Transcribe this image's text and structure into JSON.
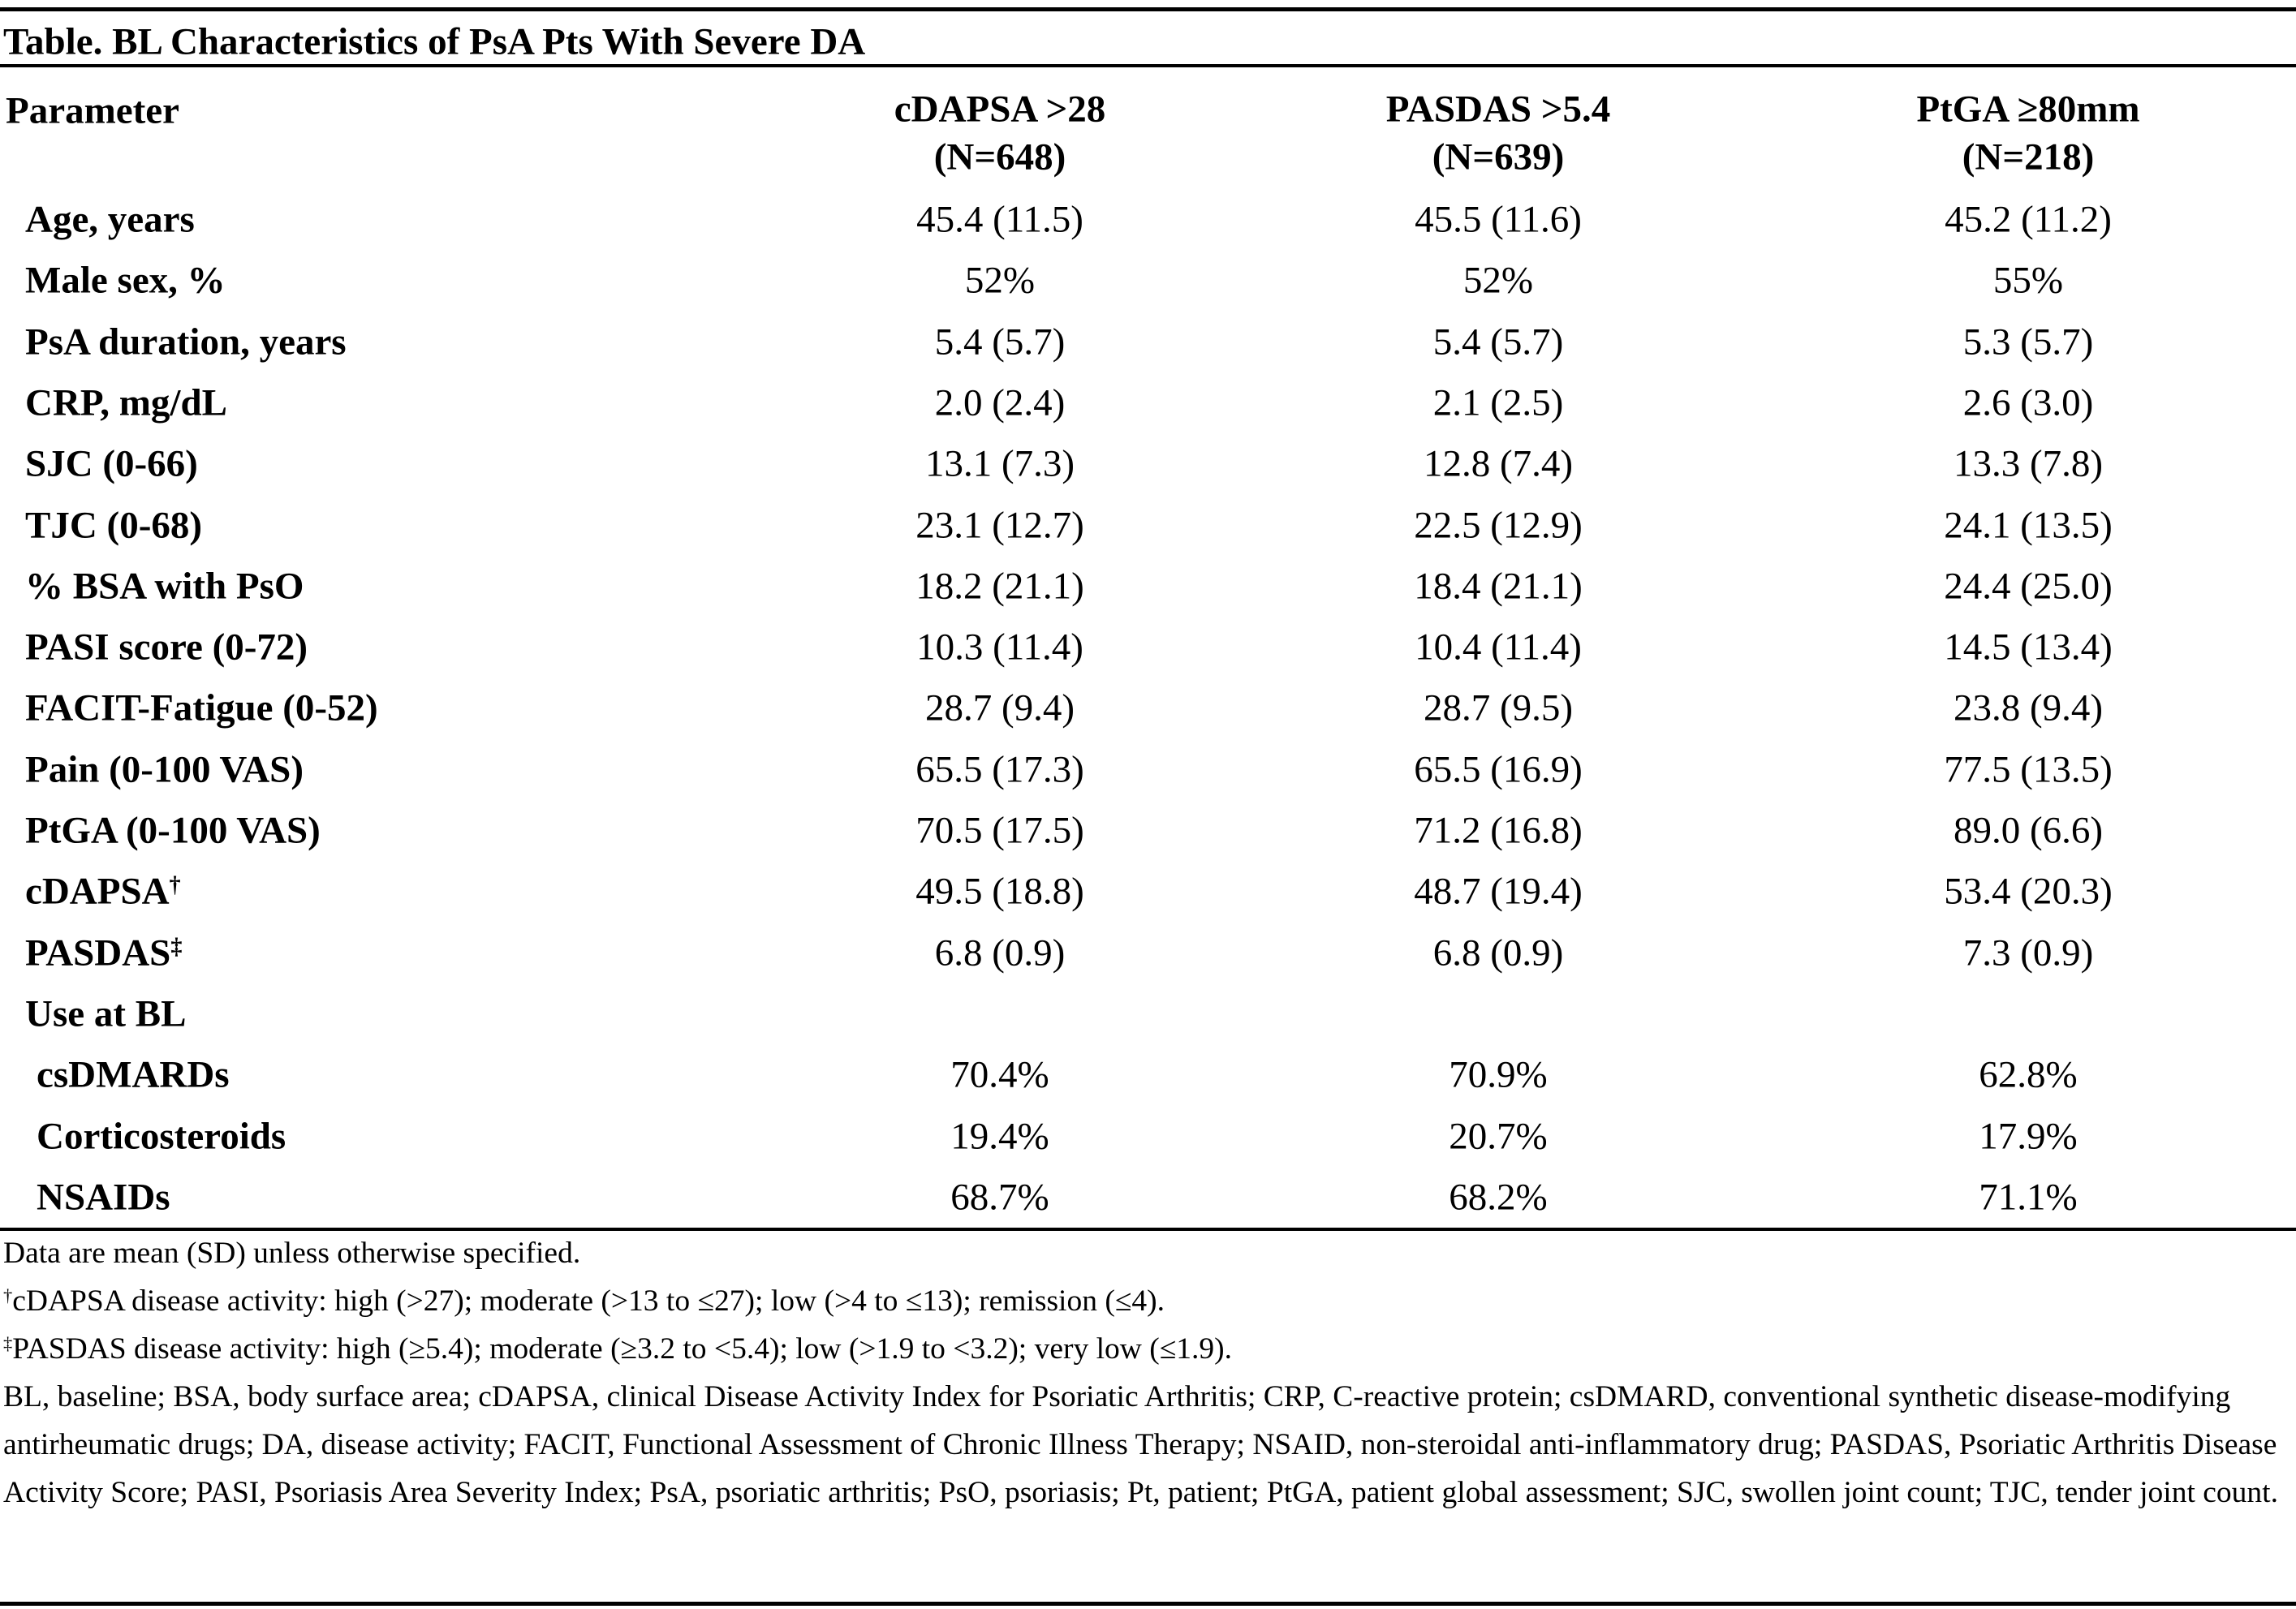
{
  "table": {
    "title": "Table. BL Characteristics of PsA Pts With Severe DA",
    "header": {
      "parameter": "Parameter",
      "columns": [
        {
          "name": "cDAPSA >28",
          "n": "(N=648)"
        },
        {
          "name": "PASDAS >5.4",
          "n": "(N=639)"
        },
        {
          "name": "PtGA ≥80mm",
          "n": "(N=218)"
        }
      ]
    },
    "rows": [
      {
        "parameter": "Age, years",
        "values": [
          "45.4 (11.5)",
          "45.5 (11.6)",
          "45.2 (11.2)"
        ]
      },
      {
        "parameter": "Male sex, %",
        "values": [
          "52%",
          "52%",
          "55%"
        ]
      },
      {
        "parameter": "PsA duration, years",
        "values": [
          "5.4 (5.7)",
          "5.4 (5.7)",
          "5.3 (5.7)"
        ]
      },
      {
        "parameter": "CRP, mg/dL",
        "values": [
          "2.0 (2.4)",
          "2.1 (2.5)",
          "2.6 (3.0)"
        ]
      },
      {
        "parameter": "SJC (0-66)",
        "values": [
          "13.1 (7.3)",
          "12.8 (7.4)",
          "13.3 (7.8)"
        ]
      },
      {
        "parameter": "TJC (0-68)",
        "values": [
          "23.1 (12.7)",
          "22.5 (12.9)",
          "24.1 (13.5)"
        ]
      },
      {
        "parameter": "% BSA with PsO",
        "values": [
          "18.2 (21.1)",
          "18.4 (21.1)",
          "24.4 (25.0)"
        ]
      },
      {
        "parameter": "PASI score (0-72)",
        "values": [
          "10.3 (11.4)",
          "10.4 (11.4)",
          "14.5 (13.4)"
        ]
      },
      {
        "parameter": "FACIT-Fatigue (0-52)",
        "values": [
          "28.7 (9.4)",
          "28.7 (9.5)",
          "23.8 (9.4)"
        ]
      },
      {
        "parameter": "Pain (0-100 VAS)",
        "values": [
          "65.5 (17.3)",
          "65.5 (16.9)",
          "77.5 (13.5)"
        ]
      },
      {
        "parameter": "PtGA (0-100 VAS)",
        "values": [
          "70.5 (17.5)",
          "71.2 (16.8)",
          "89.0 (6.6)"
        ]
      },
      {
        "parameter": "cDAPSA",
        "mark": "†",
        "values": [
          "49.5 (18.8)",
          "48.7 (19.4)",
          "53.4 (20.3)"
        ]
      },
      {
        "parameter": "PASDAS",
        "mark": "‡",
        "values": [
          "6.8 (0.9)",
          "6.8 (0.9)",
          "7.3 (0.9)"
        ]
      }
    ],
    "use_at_bl": {
      "label": "Use at BL",
      "rows": [
        {
          "parameter": "csDMARDs",
          "values": [
            "70.4%",
            "70.9%",
            "62.8%"
          ]
        },
        {
          "parameter": "Corticosteroids",
          "values": [
            "19.4%",
            "20.7%",
            "17.9%"
          ]
        },
        {
          "parameter": "NSAIDs",
          "values": [
            "68.7%",
            "68.2%",
            "71.1%"
          ]
        }
      ]
    },
    "footnotes": [
      {
        "text": "Data are mean (SD) unless otherwise specified."
      },
      {
        "mark": "†",
        "text": "cDAPSA disease activity: high (>27); moderate (>13 to ≤27); low (>4 to ≤13); remission (≤4)."
      },
      {
        "mark": "‡",
        "text": "PASDAS disease activity: high (≥5.4); moderate (≥3.2 to <5.4); low (>1.9 to <3.2); very low (≤1.9)."
      },
      {
        "text": "BL, baseline; BSA, body surface area; cDAPSA, clinical Disease Activity Index for Psoriatic Arthritis; CRP, C-reactive protein; csDMARD, conventional synthetic disease-modifying antirheumatic drugs; DA, disease activity; FACIT, Functional Assessment of Chronic Illness Therapy; NSAID, non-steroidal anti-inflammatory drug; PASDAS, Psoriatic Arthritis Disease Activity Score; PASI, Psoriasis Area Severity Index; PsA, psoriatic arthritis; PsO, psoriasis; Pt, patient; PtGA, patient global assessment; SJC, swollen joint count; TJC, tender joint count."
      }
    ]
  }
}
